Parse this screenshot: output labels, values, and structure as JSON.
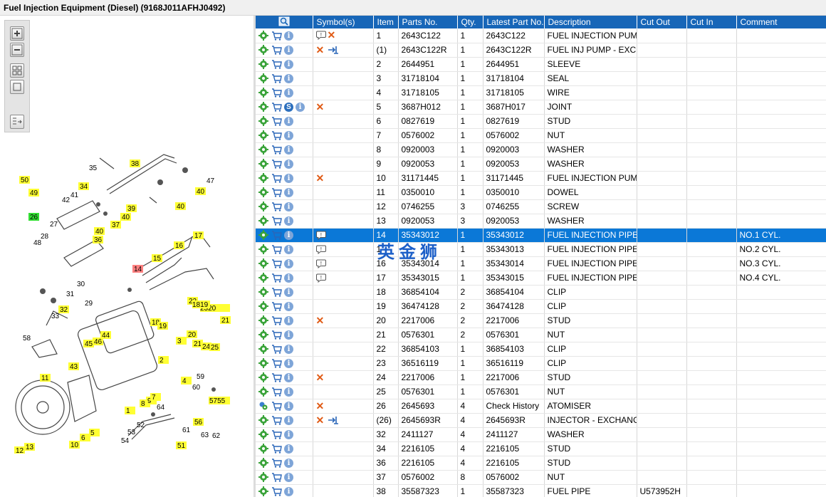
{
  "window": {
    "title": "Fuel Injection Equipment (Diesel) (9168J011AFHJ0492)"
  },
  "toolbar": {
    "icons": [
      "zoom-in-icon",
      "zoom-out-icon",
      "fit-icon",
      "actual-size-icon",
      "layout-toggle-icon"
    ]
  },
  "table": {
    "columns": [
      "",
      "Symbol(s)",
      "Item",
      "Parts No.",
      "Qty.",
      "Latest Part No.",
      "Description",
      "Cut Out",
      "Cut In",
      "Comment"
    ],
    "rows": [
      {
        "sym": "bubble-x",
        "item": "1",
        "part": "2643C122",
        "qty": "1",
        "latest": "2643C122",
        "desc": "FUEL INJECTION PUMP",
        "cutout": "",
        "cutin": "",
        "comment": ""
      },
      {
        "sym": "x-exch",
        "item": "(1)",
        "part": "2643C122R",
        "qty": "1",
        "latest": "2643C122R",
        "desc": "FUEL INJ PUMP - EXCH",
        "cutout": "",
        "cutin": "",
        "comment": ""
      },
      {
        "sym": "",
        "item": "2",
        "part": "2644951",
        "qty": "1",
        "latest": "2644951",
        "desc": "SLEEVE",
        "cutout": "",
        "cutin": "",
        "comment": ""
      },
      {
        "sym": "",
        "item": "3",
        "part": "31718104",
        "qty": "1",
        "latest": "31718104",
        "desc": "SEAL",
        "cutout": "",
        "cutin": "",
        "comment": ""
      },
      {
        "sym": "",
        "item": "4",
        "part": "31718105",
        "qty": "1",
        "latest": "31718105",
        "desc": "WIRE",
        "cutout": "",
        "cutin": "",
        "comment": ""
      },
      {
        "sym": "x",
        "item": "5",
        "part": "3687H012",
        "qty": "1",
        "latest": "3687H017",
        "desc": "JOINT",
        "cutout": "",
        "cutin": "",
        "comment": "",
        "s": true
      },
      {
        "sym": "",
        "item": "6",
        "part": "0827619",
        "qty": "1",
        "latest": "0827619",
        "desc": "STUD",
        "cutout": "",
        "cutin": "",
        "comment": ""
      },
      {
        "sym": "",
        "item": "7",
        "part": "0576002",
        "qty": "1",
        "latest": "0576002",
        "desc": "NUT",
        "cutout": "",
        "cutin": "",
        "comment": ""
      },
      {
        "sym": "",
        "item": "8",
        "part": "0920003",
        "qty": "1",
        "latest": "0920003",
        "desc": "WASHER",
        "cutout": "",
        "cutin": "",
        "comment": ""
      },
      {
        "sym": "",
        "item": "9",
        "part": "0920053",
        "qty": "1",
        "latest": "0920053",
        "desc": "WASHER",
        "cutout": "",
        "cutin": "",
        "comment": ""
      },
      {
        "sym": "x",
        "item": "10",
        "part": "31171445",
        "qty": "1",
        "latest": "31171445",
        "desc": "FUEL INJECTION PUMP G",
        "cutout": "",
        "cutin": "",
        "comment": ""
      },
      {
        "sym": "",
        "item": "11",
        "part": "0350010",
        "qty": "1",
        "latest": "0350010",
        "desc": "DOWEL",
        "cutout": "",
        "cutin": "",
        "comment": ""
      },
      {
        "sym": "",
        "item": "12",
        "part": "0746255",
        "qty": "3",
        "latest": "0746255",
        "desc": "SCREW",
        "cutout": "",
        "cutin": "",
        "comment": ""
      },
      {
        "sym": "",
        "item": "13",
        "part": "0920053",
        "qty": "3",
        "latest": "0920053",
        "desc": "WASHER",
        "cutout": "",
        "cutin": "",
        "comment": ""
      },
      {
        "sym": "bubble",
        "item": "14",
        "part": "35343012",
        "qty": "1",
        "latest": "35343012",
        "desc": "FUEL INJECTION PIPE",
        "cutout": "",
        "cutin": "",
        "comment": "NO.1 CYL.",
        "selected": true
      },
      {
        "sym": "bubble",
        "item": "1",
        "part": "",
        "qty": "1",
        "latest": "35343013",
        "desc": "FUEL INJECTION PIPE",
        "cutout": "",
        "cutin": "",
        "comment": "NO.2 CYL."
      },
      {
        "sym": "bubble",
        "item": "16",
        "part": "35343014",
        "qty": "1",
        "latest": "35343014",
        "desc": "FUEL INJECTION PIPE",
        "cutout": "",
        "cutin": "",
        "comment": "NO.3 CYL."
      },
      {
        "sym": "bubble",
        "item": "17",
        "part": "35343015",
        "qty": "1",
        "latest": "35343015",
        "desc": "FUEL INJECTION PIPE",
        "cutout": "",
        "cutin": "",
        "comment": "NO.4 CYL."
      },
      {
        "sym": "",
        "item": "18",
        "part": "36854104",
        "qty": "2",
        "latest": "36854104",
        "desc": "CLIP",
        "cutout": "",
        "cutin": "",
        "comment": ""
      },
      {
        "sym": "",
        "item": "19",
        "part": "36474128",
        "qty": "2",
        "latest": "36474128",
        "desc": "CLIP",
        "cutout": "",
        "cutin": "",
        "comment": ""
      },
      {
        "sym": "x",
        "item": "20",
        "part": "2217006",
        "qty": "2",
        "latest": "2217006",
        "desc": "STUD",
        "cutout": "",
        "cutin": "",
        "comment": ""
      },
      {
        "sym": "",
        "item": "21",
        "part": "0576301",
        "qty": "2",
        "latest": "0576301",
        "desc": "NUT",
        "cutout": "",
        "cutin": "",
        "comment": ""
      },
      {
        "sym": "",
        "item": "22",
        "part": "36854103",
        "qty": "1",
        "latest": "36854103",
        "desc": "CLIP",
        "cutout": "",
        "cutin": "",
        "comment": ""
      },
      {
        "sym": "",
        "item": "23",
        "part": "36516119",
        "qty": "1",
        "latest": "36516119",
        "desc": "CLIP",
        "cutout": "",
        "cutin": "",
        "comment": ""
      },
      {
        "sym": "x",
        "item": "24",
        "part": "2217006",
        "qty": "1",
        "latest": "2217006",
        "desc": "STUD",
        "cutout": "",
        "cutin": "",
        "comment": ""
      },
      {
        "sym": "",
        "item": "25",
        "part": "0576301",
        "qty": "1",
        "latest": "0576301",
        "desc": "NUT",
        "cutout": "",
        "cutin": "",
        "comment": ""
      },
      {
        "sym": "x",
        "item": "26",
        "part": "2645693",
        "qty": "4",
        "latest": "Check History",
        "desc": "ATOMISER",
        "cutout": "",
        "cutin": "",
        "comment": "",
        "gearAlt": true
      },
      {
        "sym": "x-exch",
        "item": "(26)",
        "part": "2645693R",
        "qty": "4",
        "latest": "2645693R",
        "desc": "INJECTOR - EXCHANGE",
        "cutout": "",
        "cutin": "",
        "comment": ""
      },
      {
        "sym": "",
        "item": "32",
        "part": "2411127",
        "qty": "4",
        "latest": "2411127",
        "desc": "WASHER",
        "cutout": "",
        "cutin": "",
        "comment": ""
      },
      {
        "sym": "",
        "item": "34",
        "part": "2216105",
        "qty": "4",
        "latest": "2216105",
        "desc": "STUD",
        "cutout": "",
        "cutin": "",
        "comment": ""
      },
      {
        "sym": "",
        "item": "36",
        "part": "2216105",
        "qty": "4",
        "latest": "2216105",
        "desc": "STUD",
        "cutout": "",
        "cutin": "",
        "comment": ""
      },
      {
        "sym": "",
        "item": "37",
        "part": "0576002",
        "qty": "8",
        "latest": "0576002",
        "desc": "NUT",
        "cutout": "",
        "cutin": "",
        "comment": ""
      },
      {
        "sym": "",
        "item": "38",
        "part": "35587323",
        "qty": "1",
        "latest": "35587323",
        "desc": "FUEL PIPE",
        "cutout": "U573952H",
        "cutin": "",
        "comment": ""
      }
    ]
  },
  "watermark": "英金狮",
  "diagram": {
    "labels": [
      "50",
      "49",
      "35",
      "38",
      "47",
      "40",
      "34",
      "41",
      "42",
      "39",
      "40",
      "37",
      "40",
      "36",
      "26",
      "27",
      "48",
      "28",
      "17",
      "16",
      "15",
      "14",
      "30",
      "31",
      "29",
      "32",
      "33",
      "22",
      "18",
      "19",
      "23",
      "20",
      "18",
      "19",
      "20",
      "21",
      "24",
      "25",
      "3",
      "2",
      "46",
      "45",
      "44",
      "58",
      "43",
      "11",
      "8",
      "9",
      "7",
      "64",
      "4",
      "59",
      "60",
      "5755",
      "56",
      "1",
      "6",
      "5",
      "10",
      "12",
      "13",
      "52",
      "53",
      "54",
      "51",
      "63",
      "62",
      "61"
    ]
  }
}
